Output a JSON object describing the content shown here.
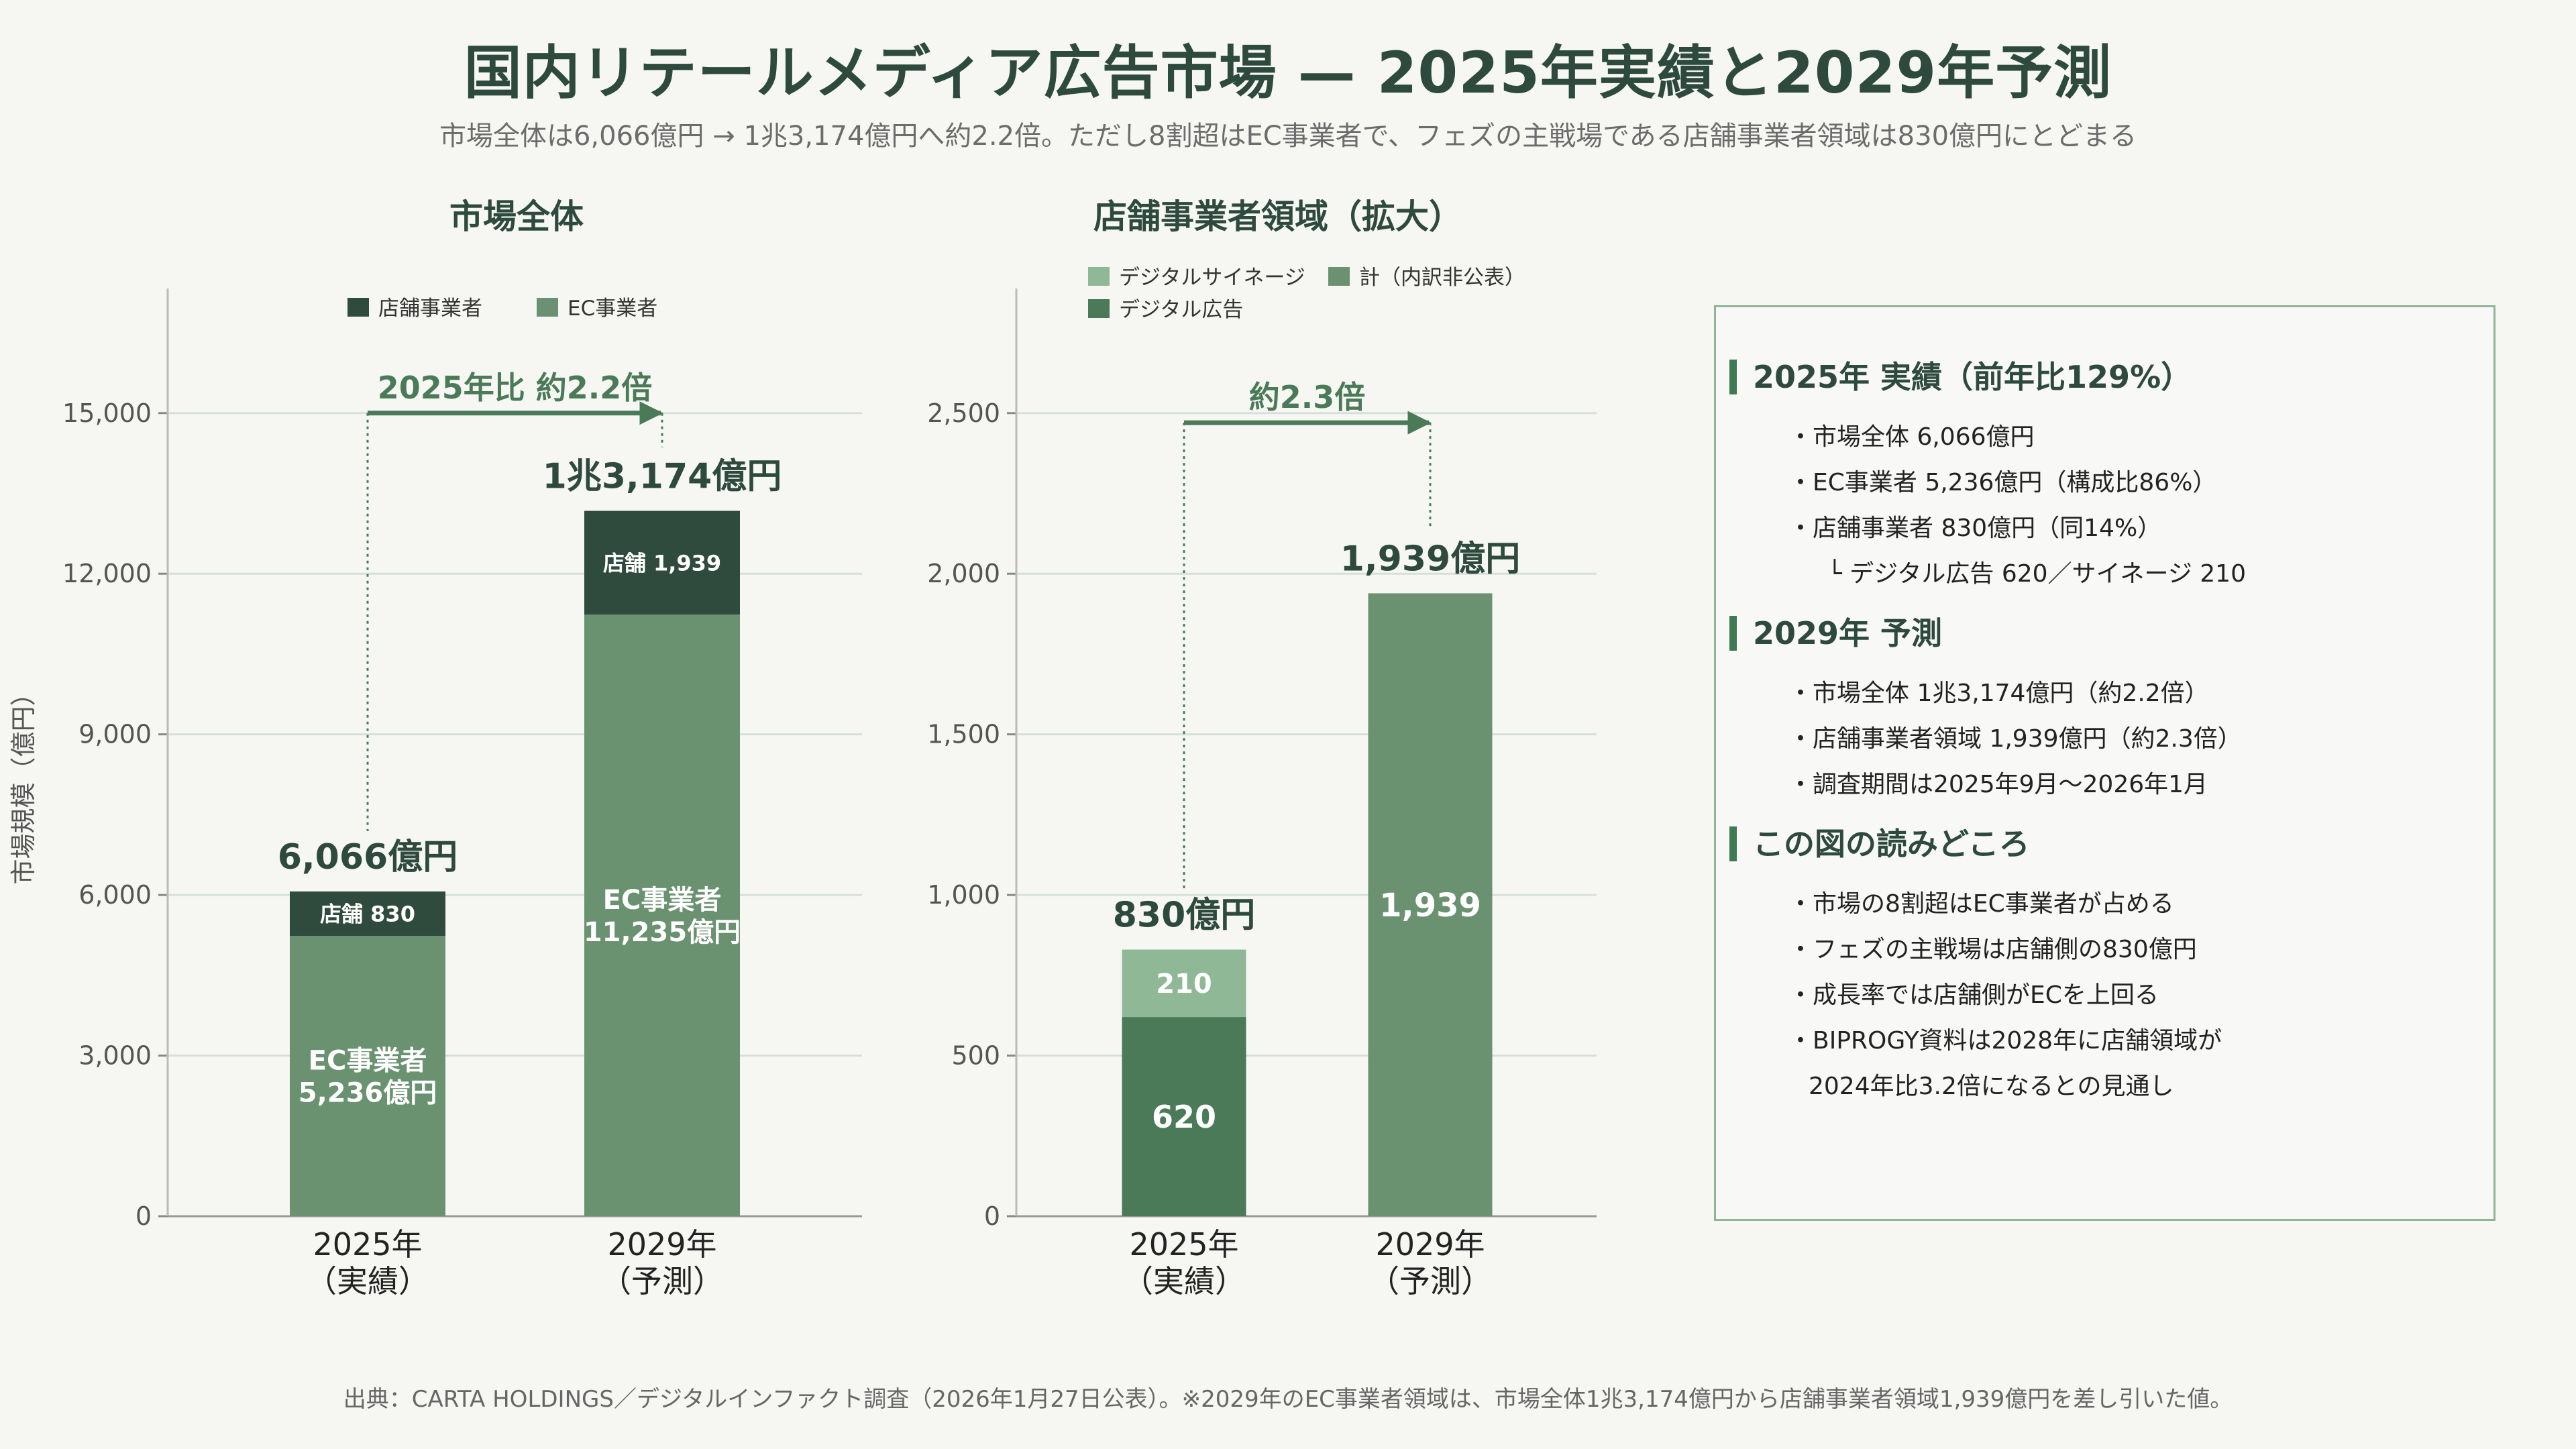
{
  "title": "国内リテールメディア広告市場 — 2025年実績と2029年予測",
  "subtitle": "市場全体は6,066億円 → 1兆3,174億円へ約2.2倍。ただし8割超はEC事業者で、フェズの主戦場である店舗事業者領域は830億円にとどまる",
  "colors": {
    "store": "#2f4b3d",
    "ec": "#6a9270",
    "digital_ad": "#4a7a57",
    "signage": "#8fb996",
    "total": "#6a9270",
    "arrow": "#4a7a58",
    "grid": "#d6e0db"
  },
  "chart_data": [
    {
      "type": "bar",
      "stacked": true,
      "title": "市場全体",
      "ylabel": "市場規模（億円）",
      "ylim": [
        0,
        16200
      ],
      "yticks": [
        0,
        3000,
        6000,
        9000,
        12000,
        15000
      ],
      "ytick_labels": [
        "0",
        "3,000",
        "6,000",
        "9,000",
        "12,000",
        "15,000"
      ],
      "categories": [
        "2025年\n（実績）",
        "2029年\n（予測）"
      ],
      "legend": [
        "店舗事業者",
        "EC事業者"
      ],
      "series": [
        {
          "name": "EC事業者",
          "values": [
            5236,
            11235
          ],
          "labels": [
            "EC事業者\n5,236億円",
            "EC事業者\n11,235億円"
          ]
        },
        {
          "name": "店舗事業者",
          "values": [
            830,
            1939
          ],
          "labels": [
            "店舗 830",
            "店舗 1,939"
          ]
        }
      ],
      "totals": [
        "6,066億円",
        "1兆3,174億円"
      ],
      "annotation": "2025年比 約2.2倍",
      "annotation_y": 15000
    },
    {
      "type": "bar",
      "stacked": true,
      "title": "店舗事業者領域（拡大）",
      "ylim": [
        0,
        2700
      ],
      "yticks": [
        0,
        500,
        1000,
        1500,
        2000,
        2500
      ],
      "ytick_labels": [
        "0",
        "500",
        "1,000",
        "1,500",
        "2,000",
        "2,500"
      ],
      "categories": [
        "2025年\n（実績）",
        "2029年\n（予測）"
      ],
      "legend": [
        "デジタルサイネージ",
        "計（内訳非公表）",
        "デジタル広告"
      ],
      "series": [
        {
          "name": "デジタル広告",
          "values": [
            620,
            0
          ],
          "labels": [
            "620",
            ""
          ]
        },
        {
          "name": "デジタルサイネージ",
          "values": [
            210,
            0
          ],
          "labels": [
            "210",
            ""
          ]
        },
        {
          "name": "計（内訳非公表）",
          "values": [
            0,
            1939
          ],
          "labels": [
            "",
            "1,939"
          ]
        }
      ],
      "totals": [
        "830億円",
        "1,939億円"
      ],
      "annotation": "約2.3倍",
      "annotation_y": 2470
    }
  ],
  "summary": {
    "sections": [
      {
        "heading": "2025年 実績（前年比129%）",
        "items": [
          {
            "text": "・市場全体 6,066億円",
            "cls": ""
          },
          {
            "text": "・EC事業者 5,236億円（構成比86%）",
            "cls": ""
          },
          {
            "text": "・店舗事業者 830億円（同14%）",
            "cls": ""
          },
          {
            "text": "└ デジタル広告 620／サイネージ 210",
            "cls": "sub"
          }
        ]
      },
      {
        "heading": "2029年 予測",
        "items": [
          {
            "text": "・市場全体 1兆3,174億円（約2.2倍）",
            "cls": ""
          },
          {
            "text": "・店舗事業者領域 1,939億円（約2.3倍）",
            "cls": ""
          },
          {
            "text": "・調査期間は2025年9月〜2026年1月",
            "cls": ""
          }
        ]
      },
      {
        "heading": "この図の読みどころ",
        "items": [
          {
            "text": "・市場の8割超はEC事業者が占める",
            "cls": ""
          },
          {
            "text": "・フェズの主戦場は店舗側の830億円",
            "cls": ""
          },
          {
            "text": "・成長率では店舗側がECを上回る",
            "cls": ""
          },
          {
            "text": "・BIPROGY資料は2028年に店舗領域が",
            "cls": ""
          },
          {
            "text": "2024年比3.2倍になるとの見通し",
            "cls": "cont"
          }
        ]
      }
    ]
  },
  "source": "出典：CARTA HOLDINGS／デジタルインファクト調査（2026年1月27日公表）。※2029年のEC事業者領域は、市場全体1兆3,174億円から店舗事業者領域1,939億円を差し引いた値。"
}
